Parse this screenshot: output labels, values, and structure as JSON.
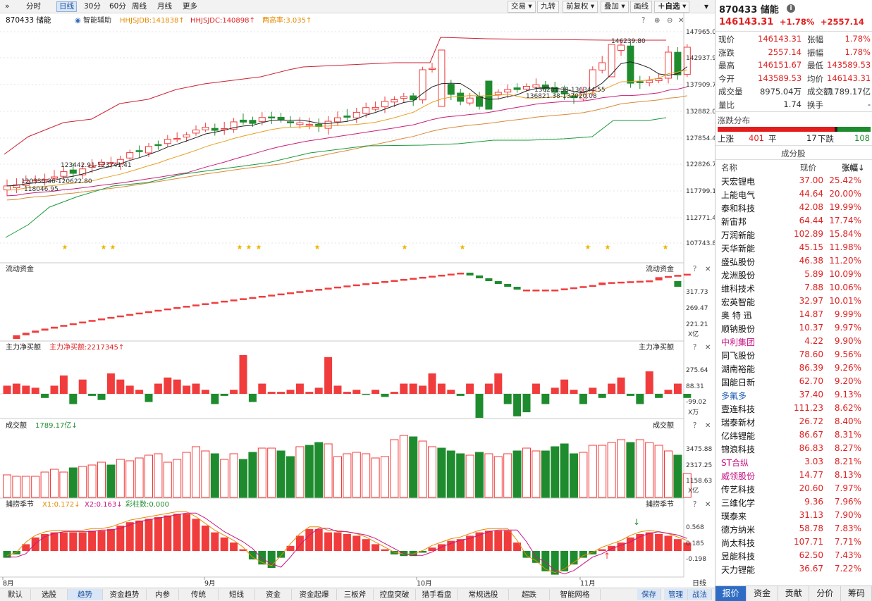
{
  "periods": [
    "分时",
    "日线",
    "30分",
    "60分",
    "周线",
    "月线",
    "更多"
  ],
  "periodActive": 1,
  "rightTools": [
    "交易",
    "九转",
    "前复权",
    "叠加",
    "画线",
    "自选"
  ],
  "main": {
    "code": "870433 储能",
    "assist": "智能辅助",
    "ind1": "HHJSJDB:141838",
    "ind2": "HHJSJDC:140898",
    "ind3": "两高率:3.035",
    "yTicks": [
      "147965.01",
      "142937.96",
      "137909.71",
      "132882.06",
      "127854.42",
      "122826.77",
      "117799.13",
      "112771.49",
      "107743.83"
    ],
    "labels": [
      "146239.80",
      "123442.91-123741.41",
      "120330.36-120622.80",
      "118046.95",
      "136821.38-137020.08",
      "136201.38-136344.55"
    ]
  },
  "flow": {
    "title": "流动资金",
    "titleRight": "流动资金",
    "ticks": [
      "317.73",
      "269.47",
      "221.21"
    ],
    "unit": "X亿"
  },
  "net": {
    "title": "主力净买额",
    "val": "主力净买额:2217345",
    "titleRight": "主力净买额",
    "ticks": [
      "275.64",
      "88.31",
      "-99.02"
    ],
    "unit": "X万"
  },
  "amt": {
    "title": "成交额",
    "val": "1789.17亿",
    "titleRight": "成交额",
    "ticks": [
      "3475.88",
      "2317.25",
      "1158.63"
    ],
    "unit": "X亿"
  },
  "season": {
    "title": "捕捞季节",
    "x1": "X1:0.172",
    "x2": "X2:0.163",
    "bar": "彩柱数:0.000",
    "titleRight": "捕捞季节",
    "ticks": [
      "0.568",
      "0.185",
      "-0.198"
    ]
  },
  "xLabels": [
    "8月",
    "9月",
    "10月",
    "11月"
  ],
  "bottomTabs": [
    "默认",
    "选股",
    "趋势",
    "资金趋势",
    "内参",
    "传统",
    "短线",
    "资金",
    "资金起爆",
    "三板斧",
    "控盘突破",
    "猎手看盘",
    "常规选股",
    "超跌",
    "智能网格"
  ],
  "bottomActive": 2,
  "bottomRight": [
    "保存",
    "管理",
    "战法",
    "日线"
  ],
  "panel": {
    "title": "870433 储能",
    "price": "146143.31",
    "chgPct": "+1.78%",
    "chg": "+2557.14",
    "quote": [
      [
        "现价",
        "146143.31",
        "张幅",
        "1.78%"
      ],
      [
        "涨跌",
        "2557.14",
        "振幅",
        "1.78%"
      ],
      [
        "最高",
        "146151.67",
        "最低",
        "143589.53"
      ],
      [
        "今开",
        "143589.53",
        "均价",
        "146143.31"
      ],
      [
        "成交量",
        "8975.04万",
        "成交额",
        "1789.17亿"
      ],
      [
        "量比",
        "1.74",
        "换手",
        "-"
      ]
    ],
    "distTitle": "涨跌分布",
    "upLabel": "上涨",
    "up": "401",
    "flatLabel": "平",
    "flat": "17",
    "downLabel": "下跌",
    "down": "108",
    "consTitle": "成分股",
    "colName": "名称",
    "colPrice": "现价",
    "colPct": "张幅↓",
    "stocks": [
      [
        "天宏锂电",
        "37.00",
        "25.42%"
      ],
      [
        "上能电气",
        "44.64",
        "20.00%"
      ],
      [
        "泰和科技",
        "42.08",
        "19.99%"
      ],
      [
        "新宙邦",
        "64.44",
        "17.74%"
      ],
      [
        "万润新能",
        "102.89",
        "15.84%"
      ],
      [
        "天华新能",
        "45.15",
        "11.98%"
      ],
      [
        "盛弘股份",
        "46.38",
        "11.20%"
      ],
      [
        "龙洲股份",
        "5.89",
        "10.09%"
      ],
      [
        "维科技术",
        "7.88",
        "10.06%"
      ],
      [
        "宏英智能",
        "32.97",
        "10.01%"
      ],
      [
        "奥 特 迅",
        "14.87",
        "9.99%"
      ],
      [
        "顺钠股份",
        "10.37",
        "9.97%"
      ],
      [
        "中利集团",
        "4.22",
        "9.90%"
      ],
      [
        "同飞股份",
        "78.60",
        "9.56%"
      ],
      [
        "湖南裕能",
        "86.39",
        "9.26%"
      ],
      [
        "国能日新",
        "62.70",
        "9.20%"
      ],
      [
        "多氟多",
        "37.40",
        "9.13%"
      ],
      [
        "壹连科技",
        "111.23",
        "8.62%"
      ],
      [
        "瑞泰新材",
        "26.72",
        "8.40%"
      ],
      [
        "亿纬锂能",
        "86.67",
        "8.31%"
      ],
      [
        "锦浪科技",
        "86.83",
        "8.27%"
      ],
      [
        "ST合纵",
        "3.03",
        "8.21%"
      ],
      [
        "威领股份",
        "14.77",
        "8.13%"
      ],
      [
        "传艺科技",
        "20.60",
        "7.97%"
      ],
      [
        "三维化学",
        "9.36",
        "7.96%"
      ],
      [
        "璞泰来",
        "31.13",
        "7.90%"
      ],
      [
        "德方纳米",
        "58.78",
        "7.83%"
      ],
      [
        "尚太科技",
        "107.71",
        "7.71%"
      ],
      [
        "昱能科技",
        "62.50",
        "7.43%"
      ],
      [
        "天力锂能",
        "36.67",
        "7.22%"
      ]
    ],
    "nameColors": {
      "12": "#c71585",
      "16": "#1f5fb4",
      "21": "#c71585",
      "22": "#c71585"
    },
    "tabs": [
      "报价",
      "资金",
      "贡献",
      "分价",
      "筹码"
    ],
    "tabActive": 0
  },
  "colors": {
    "up": "#f03c3c",
    "down": "#1e8c2e",
    "ma5": "#222222",
    "ma10": "#e6a020",
    "ma20": "#c81e78",
    "upperBand": "#cc2233",
    "lowerBand": "#1a9a3a"
  }
}
